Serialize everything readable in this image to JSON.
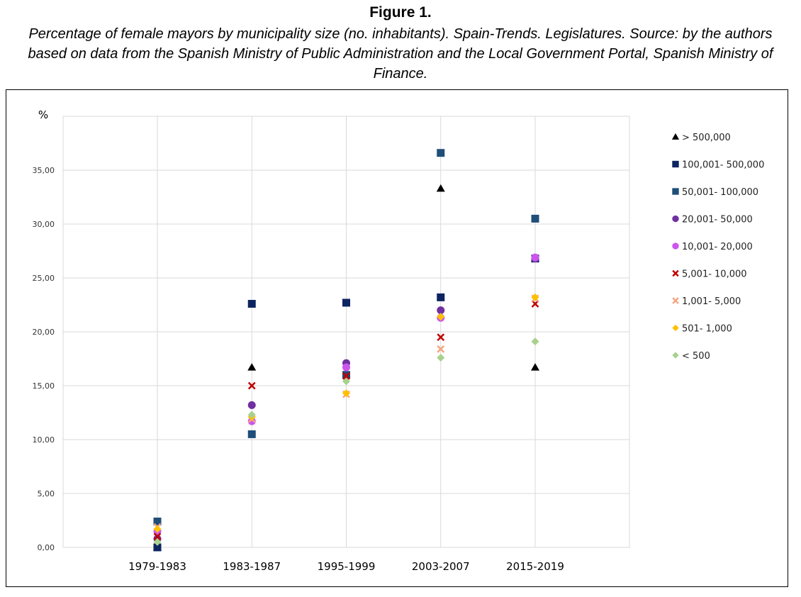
{
  "figure": {
    "title": "Figure 1.",
    "caption": "Percentage of female mayors by municipality size (no. inhabitants). Spain-Trends. Legislatures. Source: by the authors based on data from the Spanish Ministry of Public Administration and the Local Government Portal, Spanish Ministry of Finance."
  },
  "chart_data": {
    "type": "scatter",
    "title": "",
    "ylabel": "%",
    "xlabel": "",
    "categories": [
      "1979-1983",
      "1983-1987",
      "1995-1999",
      "2003-2007",
      "2015-2019"
    ],
    "ylim": [
      0,
      40
    ],
    "yticks": [
      0,
      5,
      10,
      15,
      20,
      25,
      30,
      35
    ],
    "ytick_labels": [
      "0,00",
      "5,00",
      "10,00",
      "15,00",
      "20,00",
      "25,00",
      "30,00",
      "35,00"
    ],
    "grid": true,
    "legend_position": "right",
    "series": [
      {
        "name": "> 500,000",
        "marker": "triangle",
        "color": "#000000",
        "values": [
          0.0,
          16.7,
          16.0,
          33.3,
          16.7
        ]
      },
      {
        "name": "100,001- 500,000",
        "marker": "square",
        "color": "#0d2461",
        "values": [
          0.0,
          22.6,
          22.7,
          23.2,
          26.8
        ]
      },
      {
        "name": "50,001- 100,000",
        "marker": "square",
        "color": "#1f4e79",
        "values": [
          2.4,
          10.5,
          16.0,
          36.6,
          30.5
        ]
      },
      {
        "name": "20,001- 50,000",
        "marker": "circle",
        "color": "#7030a0",
        "values": [
          0.8,
          13.2,
          17.1,
          22.0,
          26.8
        ]
      },
      {
        "name": "10,001- 20,000",
        "marker": "circle",
        "color": "#cc55ee",
        "values": [
          1.5,
          11.7,
          16.7,
          21.3,
          26.9
        ]
      },
      {
        "name": "5,001- 10,000",
        "marker": "x",
        "color": "#c00000",
        "values": [
          1.0,
          15.0,
          15.9,
          19.5,
          22.6
        ]
      },
      {
        "name": "1,001- 5,000",
        "marker": "x",
        "color": "#f4a582",
        "values": [
          1.9,
          11.9,
          14.2,
          18.4,
          23.1
        ]
      },
      {
        "name": "501- 1,000",
        "marker": "diamond",
        "color": "#ffc000",
        "values": [
          1.7,
          12.1,
          14.3,
          21.4,
          23.2
        ]
      },
      {
        "name": "< 500",
        "marker": "diamond",
        "color": "#a9d18e",
        "values": [
          0.5,
          12.3,
          15.4,
          17.6,
          19.1
        ]
      }
    ]
  }
}
